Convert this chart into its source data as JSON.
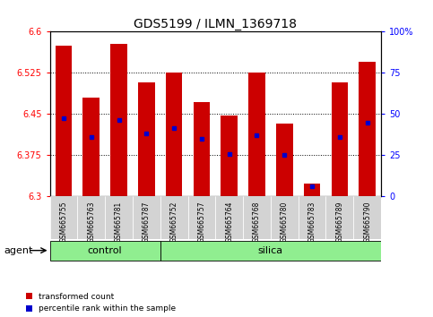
{
  "title": "GDS5199 / ILMN_1369718",
  "samples": [
    "GSM665755",
    "GSM665763",
    "GSM665781",
    "GSM665787",
    "GSM665752",
    "GSM665757",
    "GSM665764",
    "GSM665768",
    "GSM665780",
    "GSM665783",
    "GSM665789",
    "GSM665790"
  ],
  "groups": [
    "control",
    "control",
    "control",
    "control",
    "silica",
    "silica",
    "silica",
    "silica",
    "silica",
    "silica",
    "silica",
    "silica"
  ],
  "bar_values": [
    6.575,
    6.48,
    6.578,
    6.508,
    6.525,
    6.472,
    6.448,
    6.525,
    6.432,
    6.323,
    6.508,
    6.545
  ],
  "percentile_values": [
    6.443,
    6.408,
    6.44,
    6.415,
    6.425,
    6.405,
    6.378,
    6.412,
    6.375,
    6.318,
    6.408,
    6.435
  ],
  "bar_bottom": 6.3,
  "ylim_left": [
    6.3,
    6.6
  ],
  "ylim_right": [
    0,
    100
  ],
  "yticks_left": [
    6.3,
    6.375,
    6.45,
    6.525,
    6.6
  ],
  "ytick_labels_left": [
    "6.3",
    "6.375",
    "6.45",
    "6.525",
    "6.6"
  ],
  "yticks_right": [
    0,
    25,
    50,
    75,
    100
  ],
  "ytick_labels_right": [
    "0",
    "25",
    "50",
    "75",
    "100%"
  ],
  "bar_color": "#cc0000",
  "percentile_color": "#0000cc",
  "control_color": "#90ee90",
  "silica_color": "#90ee90",
  "agent_label": "agent",
  "bar_width": 0.6,
  "n_control": 4,
  "n_silica": 8,
  "legend_labels": [
    "transformed count",
    "percentile rank within the sample"
  ]
}
